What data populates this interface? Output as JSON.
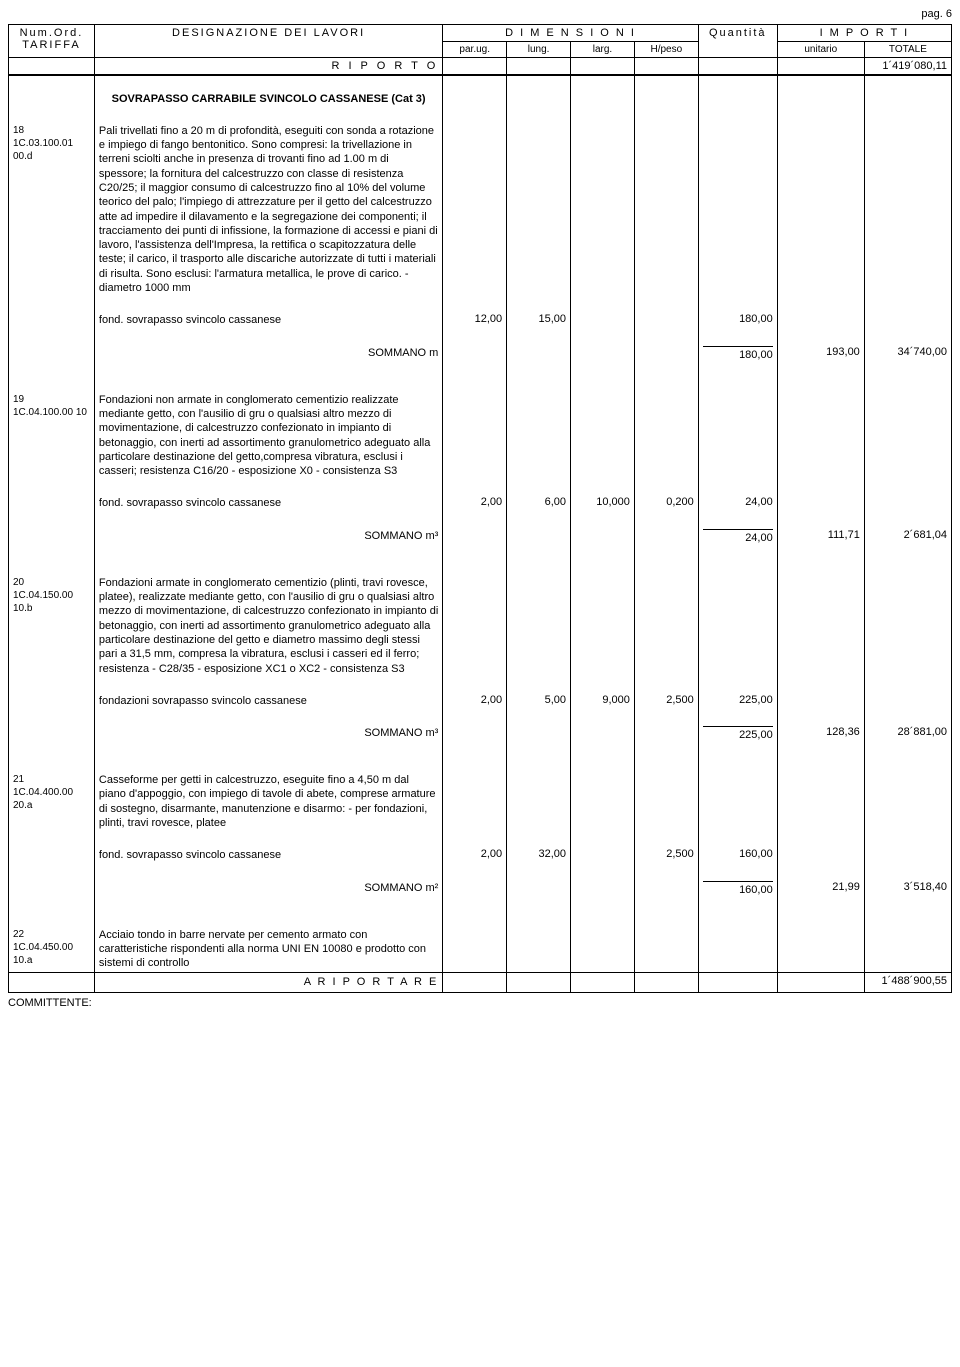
{
  "page_label": "pag. 6",
  "header": {
    "num_ord": "Num.Ord.",
    "tariffa": "TARIFFA",
    "designazione": "DESIGNAZIONE DEI LAVORI",
    "dimensioni": "D I M E N S I O N I",
    "parug": "par.ug.",
    "lung": "lung.",
    "larg": "larg.",
    "hpeso": "H/peso",
    "quantita": "Quantità",
    "importi": "I M P O R T I",
    "unitario": "unitario",
    "totale": "TOTALE"
  },
  "riporto": {
    "label": "R I P O R T O",
    "value": "1´419´080,11"
  },
  "a_riportare": {
    "label": "A   R I P O R T A R E",
    "value": "1´488´900,55"
  },
  "committente": "COMMITTENTE:",
  "section_title": "SOVRAPASSO CARRABILE SVINCOLO CASSANESE (Cat 3)",
  "items": [
    {
      "num": "18\n1C.03.100.01 00.d",
      "desc": "Pali trivellati fino a 20 m di profondità, eseguiti con sonda a rotazione e impiego di fango bentonitico. Sono compresi: la trivellazione in terreni sciolti anche in presenza di trovanti fino ad 1.00 m di spessore; la fornitura del calcestruzzo con classe di resistenza C20/25; il maggior consumo di calcestruzzo fino al 10% del volume teorico del palo; l'impiego di attrezzature per il getto del calcestruzzo atte ad impedire il dilavamento e la segregazione dei componenti; il tracciamento dei punti di infissione, la formazione di accessi e piani di lavoro, l'assistenza dell'Impresa, la rettifica o scapitozzatura delle teste; il carico, il trasporto alle discariche autorizzate di tutti i materiali di risulta. Sono esclusi: l'armatura metallica, le prove di carico. - diametro 1000 mm",
      "meas_label": "fond. sovrapasso svincolo cassanese",
      "parug": "12,00",
      "lung": "15,00",
      "larg": "",
      "hpeso": "",
      "qty": "180,00",
      "sommano": "SOMMANO m",
      "sum_qty": "180,00",
      "unit": "193,00",
      "tot": "34´740,00"
    },
    {
      "num": "19\n1C.04.100.00 10",
      "desc": "Fondazioni non armate in conglomerato cementizio realizzate mediante getto, con l'ausilio di gru o qualsiasi altro mezzo di movimentazione, di calcestruzzo confezionato in impianto di betonaggio, con inerti ad assortimento granulometrico adeguato alla particolare destinazione del getto,compresa vibratura, esclusi i casseri; resistenza C16/20 - esposizione X0 - consistenza S3",
      "meas_label": "fond. sovrapasso svincolo cassanese",
      "parug": "2,00",
      "lung": "6,00",
      "larg": "10,000",
      "hpeso": "0,200",
      "qty": "24,00",
      "sommano": "SOMMANO m³",
      "sum_qty": "24,00",
      "unit": "111,71",
      "tot": "2´681,04"
    },
    {
      "num": "20\n1C.04.150.00 10.b",
      "desc": "Fondazioni armate in conglomerato cementizio (plinti, travi rovesce, platee), realizzate mediante getto, con l'ausilio di gru o qualsiasi altro mezzo di movimentazione, di calcestruzzo confezionato in impianto di betonaggio, con inerti ad assortimento granulometrico adeguato alla particolare destinazione del getto e diametro massimo degli stessi pari a 31,5 mm, compresa la vibratura, esclusi i casseri ed il ferro; resistenza - C28/35 - esposizione XC1 o XC2 - consistenza S3",
      "meas_label": "fondazioni sovrapasso svincolo cassanese",
      "parug": "2,00",
      "lung": "5,00",
      "larg": "9,000",
      "hpeso": "2,500",
      "qty": "225,00",
      "sommano": "SOMMANO m³",
      "sum_qty": "225,00",
      "unit": "128,36",
      "tot": "28´881,00"
    },
    {
      "num": "21\n1C.04.400.00 20.a",
      "desc": "Casseforme per getti in calcestruzzo, eseguite fino a 4,50 m dal piano d'appoggio, con impiego di tavole di abete, comprese armature di sostegno, disarmante, manutenzione e disarmo: - per fondazioni, plinti, travi rovesce, platee",
      "meas_label": "fond. sovrapasso svincolo cassanese",
      "parug": "2,00",
      "lung": "32,00",
      "larg": "",
      "hpeso": "2,500",
      "qty": "160,00",
      "sommano": "SOMMANO m²",
      "sum_qty": "160,00",
      "unit": "21,99",
      "tot": "3´518,40"
    },
    {
      "num": "22\n1C.04.450.00 10.a",
      "desc": "Acciaio tondo in barre nervate per cemento armato con caratteristiche rispondenti alla norma UNI EN 10080 e prodotto con sistemi di controllo",
      "meas_label": "",
      "parug": "",
      "lung": "",
      "larg": "",
      "hpeso": "",
      "qty": "",
      "sommano": "",
      "sum_qty": "",
      "unit": "",
      "tot": ""
    }
  ]
}
